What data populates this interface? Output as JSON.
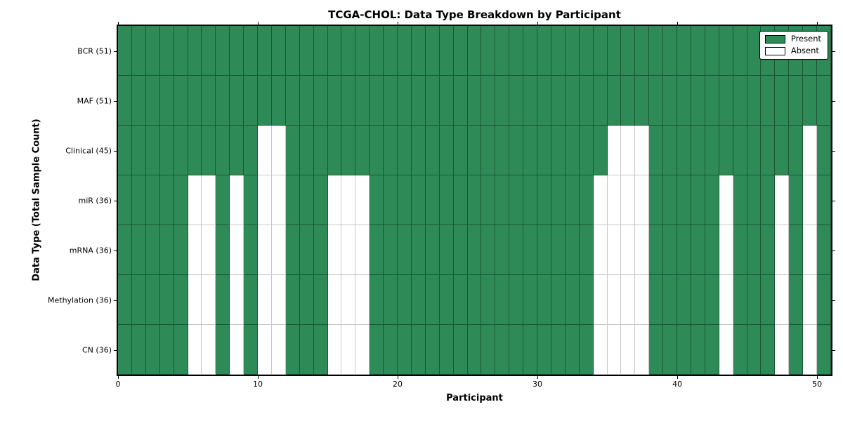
{
  "title": "TCGA-CHOL: Data Type Breakdown by Participant",
  "colors": {
    "present": "#2e8b57",
    "absent": "#ffffff",
    "axis": "#000000",
    "grid_line_on_green": "rgba(0,0,0,0.38)",
    "grid_line_on_white": "rgba(0,0,0,0.22)"
  },
  "legend": {
    "position": "upper right",
    "items": [
      {
        "label": "Present",
        "color": "#2e8b57"
      },
      {
        "label": "Absent",
        "color": "#ffffff"
      }
    ]
  },
  "chart_data": {
    "type": "heatmap",
    "title": "TCGA-CHOL: Data Type Breakdown by Participant",
    "xlabel": "Participant",
    "ylabel": "Data Type (Total Sample Count)",
    "n_participants": 51,
    "xlim": [
      0,
      51
    ],
    "x_ticks": [
      0,
      10,
      20,
      30,
      40,
      50
    ],
    "legend_position": "upper right",
    "value_legend": {
      "present": 1,
      "absent": 0
    },
    "rows": [
      {
        "label": "BCR (51)",
        "name": "BCR",
        "total_present": 51,
        "absent_participants": []
      },
      {
        "label": "MAF (51)",
        "name": "MAF",
        "total_present": 51,
        "absent_participants": []
      },
      {
        "label": "Clinical (45)",
        "name": "Clinical",
        "total_present": 45,
        "absent_participants": [
          10,
          11,
          35,
          36,
          37,
          49
        ]
      },
      {
        "label": "miR (36)",
        "name": "miR",
        "total_present": 36,
        "absent_participants": [
          5,
          6,
          8,
          10,
          11,
          15,
          16,
          17,
          34,
          35,
          36,
          37,
          43,
          47,
          49
        ]
      },
      {
        "label": "mRNA (36)",
        "name": "mRNA",
        "total_present": 36,
        "absent_participants": [
          5,
          6,
          8,
          10,
          11,
          15,
          16,
          17,
          34,
          35,
          36,
          37,
          43,
          47,
          49
        ]
      },
      {
        "label": "Methylation (36)",
        "name": "Methylation",
        "total_present": 36,
        "absent_participants": [
          5,
          6,
          8,
          10,
          11,
          15,
          16,
          17,
          34,
          35,
          36,
          37,
          43,
          47,
          49
        ]
      },
      {
        "label": "CN (36)",
        "name": "CN",
        "total_present": 36,
        "absent_participants": [
          5,
          6,
          8,
          10,
          11,
          15,
          16,
          17,
          34,
          35,
          36,
          37,
          43,
          47,
          49
        ]
      }
    ]
  }
}
